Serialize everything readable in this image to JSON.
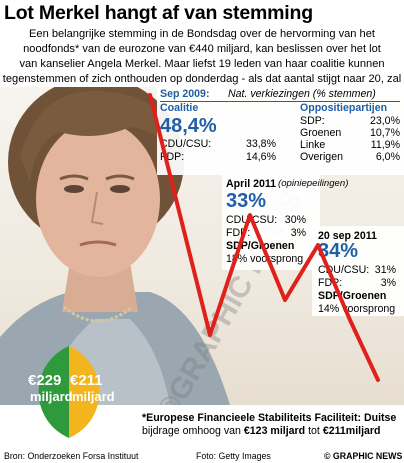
{
  "title": "Lot Merkel hangt af van stemming noodfonds",
  "intro": [
    "Een belangrijke stemming in de Bondsdag over de hervorming van het",
    "noodfonds* van de eurozone van €440 miljard, kan beslissen over het lot",
    "van kanselier Angela Merkel. Maar liefst 19 leden van haar coalitie kunnen",
    "tegenstemmen of zich onthouden op donderdag - als dat aantal stijgt naar 20, zal de CDU/CSU/FDP-coalitie haar meerderheid verliezen"
  ],
  "panels": {
    "sep2009": {
      "date": "Sep 2009:",
      "note": "Nat. verkiezingen (% stemmen)",
      "left_title": "Coalitie",
      "left_total": "48,4%",
      "left_rows": [
        {
          "party": "CDU/CSU:",
          "value": "33,8%"
        },
        {
          "party": "FDP:",
          "value": "14,6%"
        }
      ],
      "right_title": "Oppositiepartijen",
      "right_rows": [
        {
          "party": "SDP:",
          "value": "23,0%"
        },
        {
          "party": "Groenen",
          "value": "10,7%"
        },
        {
          "party": "Linke",
          "value": "11,9%"
        },
        {
          "party": "Overigen",
          "value": "6,0%"
        }
      ]
    },
    "apr2011": {
      "date": "April 2011",
      "note": "(opiniepeilingen)",
      "total": "33%",
      "rows": [
        {
          "party": "CDU/CSU:",
          "value": "30%"
        },
        {
          "party": "FDP:",
          "value": "3%"
        }
      ],
      "lead": [
        "SDP/Groenen",
        "18% voorsprong"
      ]
    },
    "sep2011": {
      "date": "20 sep 2011",
      "total": "34%",
      "rows": [
        {
          "party": "CDU/CSU:",
          "value": "31%"
        },
        {
          "party": "FDP:",
          "value": "3%"
        }
      ],
      "lead": [
        "SDP/Groenen",
        "14% voorsprong"
      ]
    }
  },
  "circle": {
    "left_amount": "€229",
    "left_unit": "miljard",
    "right_amount": "€211",
    "right_unit": "miljard",
    "colors": {
      "left": "#2f9a3c",
      "right": "#f2b51d"
    }
  },
  "footnote": [
    "*Europese Financieele Stabiliteits Faciliteit: Duitse"
  ],
  "footnote_parts": [
    "bijdrage omhoog van ",
    "€123 miljard",
    " tot ",
    "€211miljard"
  ],
  "credits": {
    "source": "Bron: Onderzoeken Forsa Instituut",
    "photo": "Foto: Getty Images",
    "agency": "© GRAPHIC NEWS"
  },
  "colors": {
    "trend_line": "#e0201b",
    "accent_blue": "#1f5fa8"
  }
}
